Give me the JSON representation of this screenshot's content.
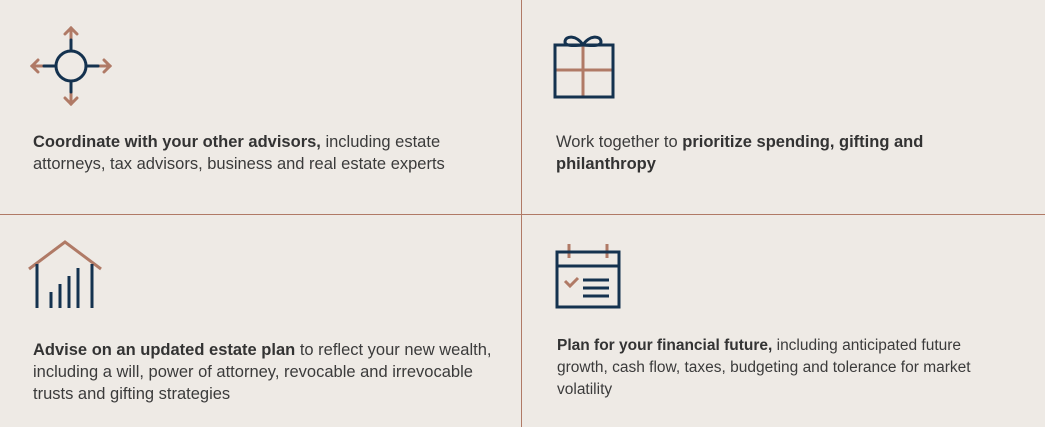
{
  "cards": [
    {
      "icon": "arrows-compass-icon",
      "bold": "Coordinate with your other advisors,",
      "rest": " including estate attorneys, tax advisors, business and real estate experts"
    },
    {
      "icon": "gift-icon",
      "pre": "Work together to ",
      "bold": "prioritize spending, gifting and philanthropy"
    },
    {
      "icon": "house-chart-icon",
      "bold": "Advise on an updated estate plan",
      "rest": " to reflect your new wealth, including a will, power of attorney, revocable and irrevocable trusts and gifting strategies"
    },
    {
      "icon": "calendar-checklist-icon",
      "bold": "Plan for your financial future,",
      "rest": " including anticipated future growth, cash flow, taxes, budgeting and tolerance for market volatility"
    }
  ],
  "colors": {
    "navy": "#14324f",
    "copper": "#b07a66",
    "background": "#eeeae5"
  }
}
